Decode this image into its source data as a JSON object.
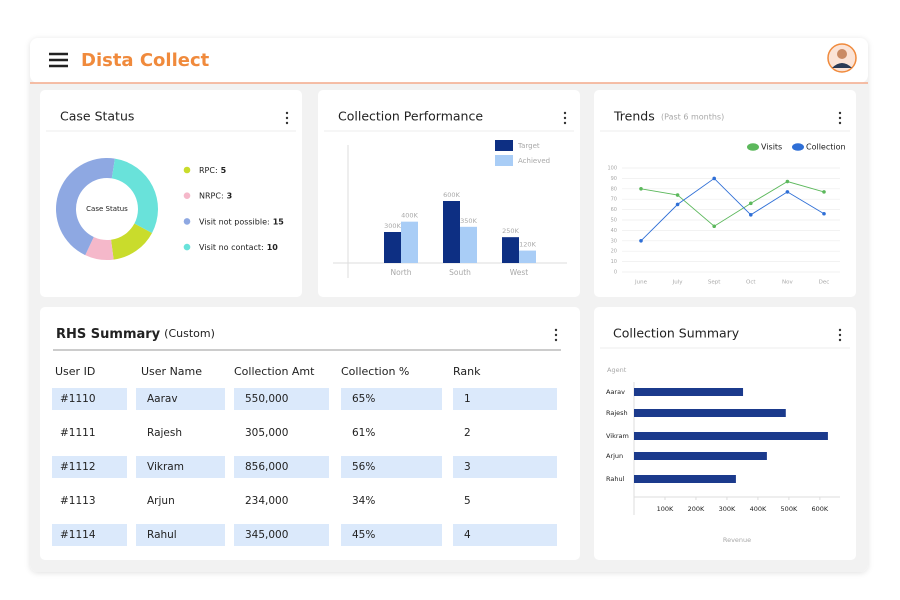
{
  "header": {
    "title": "Dista Collect"
  },
  "chart_data": [
    {
      "type": "donut",
      "title": "Case Status",
      "center_label": "Case Status",
      "labels": [
        "RPC:",
        "NRPC:",
        "Visit not possible:",
        "Visit no contact:"
      ],
      "values": [
        5,
        3,
        15,
        10
      ],
      "colors": [
        "#c9dc2c",
        "#f5b8ca",
        "#8ea8e2",
        "#69e2da"
      ]
    },
    {
      "type": "bar",
      "title": "Collection Performance",
      "categories": [
        "North",
        "South",
        "West"
      ],
      "series": [
        {
          "name": "Target",
          "color": "#0d2f83",
          "values": [
            300000,
            600000,
            250000
          ],
          "value_labels": [
            "300K",
            "600K",
            "250K"
          ]
        },
        {
          "name": "Achieved",
          "color": "#a9cdf6",
          "values": [
            400000,
            350000,
            120000
          ],
          "value_labels": [
            "400K",
            "350K",
            "120K"
          ]
        }
      ]
    },
    {
      "type": "line",
      "title": "Trends",
      "subtitle": "(Past 6 months)",
      "categories": [
        "June",
        "July",
        "Sept",
        "Oct",
        "Nov",
        "Dec"
      ],
      "series": [
        {
          "name": "Visits",
          "color": "#5cb85c",
          "values": [
            80,
            74,
            44,
            66,
            87,
            77
          ]
        },
        {
          "name": "Collection",
          "color": "#2f6fd6",
          "values": [
            30,
            65,
            90,
            55,
            77,
            56
          ]
        }
      ],
      "ylim": [
        0,
        100
      ],
      "yticks": [
        0,
        10,
        20,
        30,
        40,
        50,
        60,
        70,
        80,
        90,
        100
      ],
      "grid": true,
      "legend": "top-right"
    },
    {
      "type": "hbar",
      "title": "Collection Summary",
      "y_label": "Agent",
      "x_label": "Revenue",
      "categories": [
        "Aarav",
        "Rajesh",
        "Vikram",
        "Arjun",
        "Rahul"
      ],
      "values": [
        352000,
        490000,
        626000,
        429000,
        329000
      ],
      "color": "#1b3a8c",
      "xlim": [
        0,
        665000
      ],
      "xticks": [
        {
          "value": 100000,
          "label": "100K"
        },
        {
          "value": 200000,
          "label": "200K"
        },
        {
          "value": 300000,
          "label": "300K"
        },
        {
          "value": 400000,
          "label": "400K"
        },
        {
          "value": 500000,
          "label": "500K"
        },
        {
          "value": 600000,
          "label": "600K"
        }
      ]
    }
  ],
  "table": {
    "title": "RHS Summary",
    "subtitle": "(Custom)",
    "columns": [
      "User ID",
      "User Name",
      "Collection Amt",
      "Collection %",
      "Rank"
    ],
    "rows": [
      [
        "#1110",
        "Aarav",
        "550,000",
        "65%",
        "1"
      ],
      [
        "#1111",
        "Rajesh",
        "305,000",
        "61%",
        "2"
      ],
      [
        "#1112",
        "Vikram",
        "856,000",
        "56%",
        "3"
      ],
      [
        "#1113",
        "Arjun",
        "234,000",
        "34%",
        "5"
      ],
      [
        "#1114",
        "Rahul",
        "345,000",
        "45%",
        "4"
      ]
    ]
  }
}
